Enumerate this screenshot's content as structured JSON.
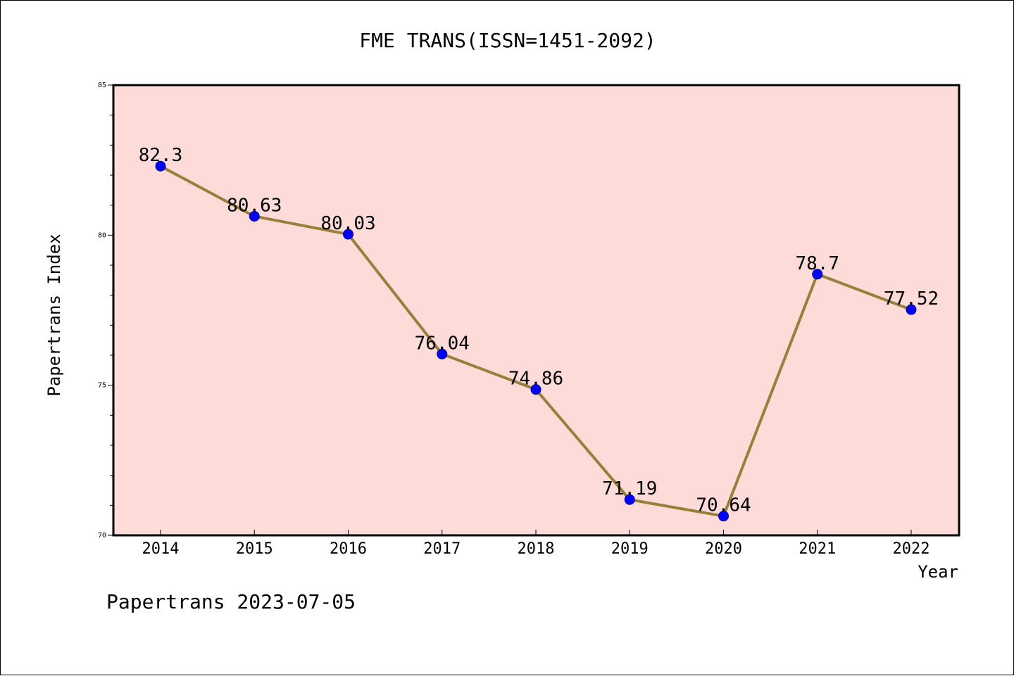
{
  "chart_data": {
    "type": "line",
    "title": "FME TRANS(ISSN=1451-2092)",
    "xlabel": "Year",
    "ylabel": "Papertrans Index",
    "categories": [
      "2014",
      "2015",
      "2016",
      "2017",
      "2018",
      "2019",
      "2020",
      "2021",
      "2022"
    ],
    "series": [
      {
        "values": [
          82.3,
          80.63,
          80.03,
          76.04,
          74.86,
          71.19,
          70.64,
          78.7,
          77.52
        ],
        "labels": [
          "82.3",
          "80.63",
          "80.03",
          "76.04",
          "74.86",
          "71.19",
          "70.64",
          "78.7",
          "77.52"
        ]
      }
    ],
    "ylim": [
      70,
      85
    ],
    "yticks": [
      "70",
      "75",
      "80",
      "85"
    ],
    "grid": false,
    "legend": "none",
    "colors": {
      "plot_background": "#fddbd8",
      "line": "#9a7f3a",
      "marker": "#0000ff",
      "marker_edge": "#00008b"
    }
  },
  "footer": {
    "text": "Papertrans 2023-07-05"
  }
}
